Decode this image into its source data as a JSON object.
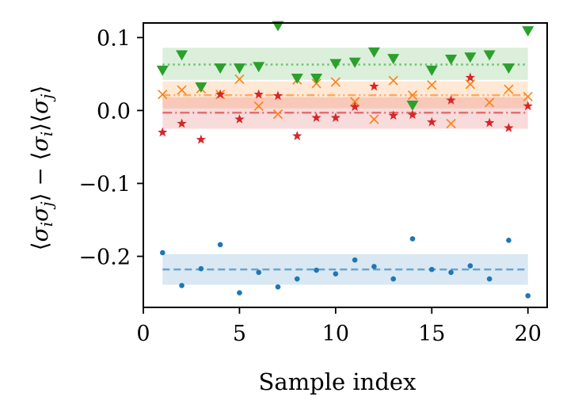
{
  "chart_data": {
    "type": "scatter",
    "title": "",
    "xlabel": "Sample index",
    "ylabel": {
      "lead": "⟨",
      "sigma": "σ",
      "i": "i",
      "j": "j",
      "close": "⟩",
      "minus": " − ",
      "full": "⟨σiσj⟩ − ⟨σi⟩⟨σj⟩"
    },
    "xlim": [
      0,
      21
    ],
    "ylim": [
      -0.27,
      0.12
    ],
    "xticks": [
      0,
      5,
      10,
      15,
      20
    ],
    "xtick_labels": [
      "0",
      "5",
      "10",
      "15",
      "20"
    ],
    "yticks": [
      -0.2,
      -0.1,
      0.0,
      0.1
    ],
    "ytick_labels": [
      "−0.2",
      "−0.1",
      "0.0",
      "0.1"
    ],
    "x": [
      1,
      2,
      3,
      4,
      5,
      6,
      7,
      8,
      9,
      10,
      11,
      12,
      13,
      14,
      15,
      16,
      17,
      18,
      19,
      20
    ],
    "series": [
      {
        "name": "blue",
        "color": "#1f77b4",
        "marker": "dot",
        "line_style": "dashed",
        "mean": -0.218,
        "band": [
          -0.239,
          -0.197
        ],
        "values": [
          -0.195,
          -0.24,
          -0.217,
          -0.184,
          -0.25,
          -0.222,
          -0.242,
          -0.231,
          -0.219,
          -0.224,
          -0.205,
          -0.214,
          -0.231,
          -0.176,
          -0.218,
          -0.222,
          -0.213,
          -0.231,
          -0.178,
          -0.254
        ]
      },
      {
        "name": "orange",
        "color": "#ff7f0e",
        "marker": "x",
        "line_style": "dashdotdot",
        "mean": 0.021,
        "band": [
          0.003,
          0.04
        ],
        "values": [
          0.022,
          0.028,
          0.03,
          0.022,
          0.043,
          0.006,
          -0.005,
          0.042,
          0.037,
          0.039,
          0.012,
          -0.012,
          0.041,
          0.021,
          0.035,
          -0.018,
          0.036,
          0.011,
          0.029,
          0.019
        ]
      },
      {
        "name": "green",
        "color": "#2ca02c",
        "marker": "triangle-down",
        "line_style": "dotted",
        "mean": 0.063,
        "band": [
          0.042,
          0.086
        ],
        "values": [
          0.055,
          0.076,
          0.032,
          0.058,
          0.058,
          0.06,
          0.116,
          0.044,
          0.044,
          0.064,
          0.066,
          0.08,
          0.071,
          0.007,
          0.055,
          0.07,
          0.073,
          0.076,
          0.058,
          0.109
        ]
      },
      {
        "name": "red",
        "color": "#d62728",
        "marker": "star",
        "line_style": "dashdot",
        "mean": -0.003,
        "band": [
          -0.025,
          0.018
        ],
        "values": [
          -0.03,
          -0.018,
          -0.04,
          0.022,
          -0.012,
          0.022,
          0.02,
          -0.035,
          -0.01,
          -0.01,
          0.005,
          0.033,
          -0.007,
          -0.006,
          -0.016,
          0.014,
          0.045,
          -0.017,
          -0.024,
          0.006
        ]
      }
    ]
  }
}
